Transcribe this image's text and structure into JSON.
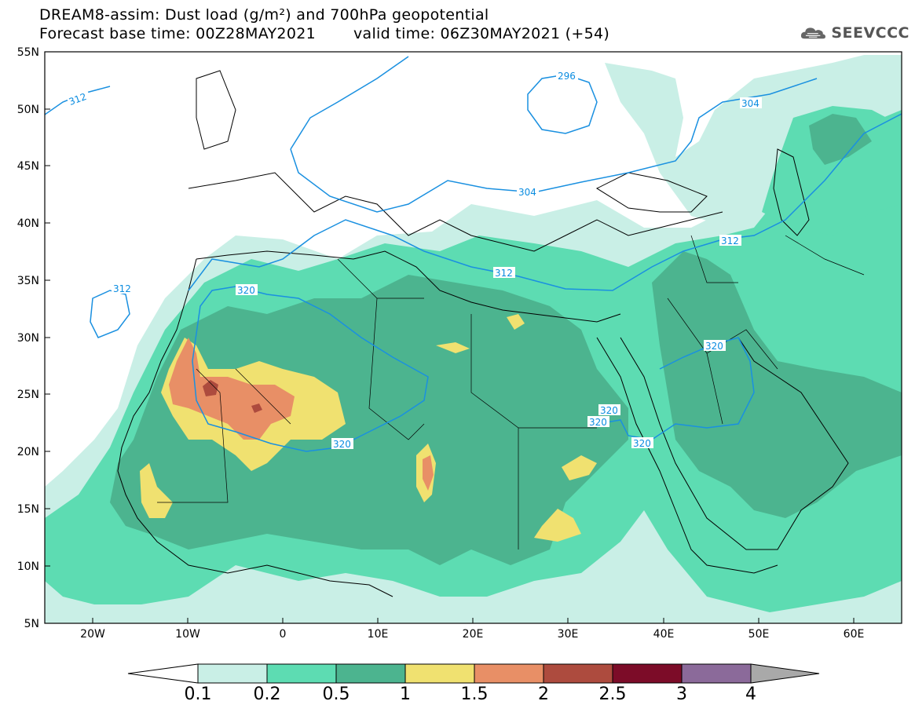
{
  "title": {
    "line1": "DREAM8-assim: Dust load (g/m²) and 700hPa geopotential",
    "forecast_base": "Forecast base time: 00Z28MAY2021",
    "valid_time": "valid time: 06Z30MAY2021 (+54)"
  },
  "logo": {
    "text": "SEEVCCC",
    "icon": "cloud-icon"
  },
  "map": {
    "lon_ticks": [
      "20W",
      "10W",
      "0",
      "10E",
      "20E",
      "30E",
      "40E",
      "50E",
      "60E"
    ],
    "lat_ticks": [
      "55N",
      "50N",
      "45N",
      "40N",
      "35N",
      "30N",
      "25N",
      "20N",
      "15N",
      "10N",
      "5N"
    ],
    "contour_labels": [
      "312",
      "296",
      "304",
      "304",
      "312",
      "312",
      "320",
      "320",
      "320",
      "320",
      "320",
      "320",
      "312"
    ]
  },
  "colorbar": {
    "colors": [
      "#c9efe6",
      "#5ddcb2",
      "#4cb48f",
      "#f0e170",
      "#e88f66",
      "#ad4b3e",
      "#7c0c28",
      "#8b6a9a",
      "#a9a9a9"
    ],
    "tick_labels": [
      "0.1",
      "0.2",
      "0.5",
      "1",
      "1.5",
      "2",
      "2.5",
      "3",
      "4"
    ]
  }
}
